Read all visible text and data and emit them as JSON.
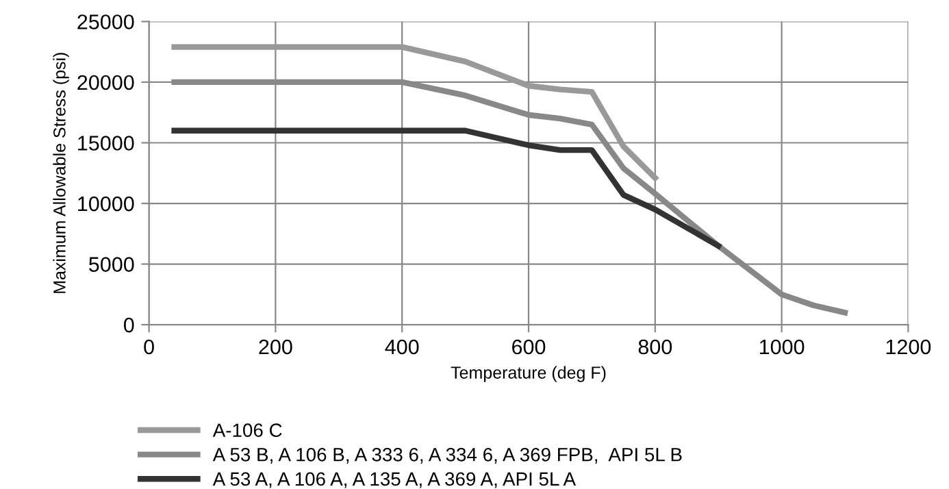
{
  "chart_data": {
    "type": "line",
    "xlabel": "Temperature (deg F)",
    "ylabel": "Maximum Allowable Stress (psi)",
    "xlim": [
      0,
      1200
    ],
    "xticks": [
      0,
      200,
      400,
      600,
      800,
      1000,
      1200
    ],
    "ylim": [
      0,
      25000
    ],
    "yticks": [
      0,
      5000,
      10000,
      15000,
      20000,
      25000
    ],
    "grid": true,
    "legend": "bottom",
    "line_style": "solid",
    "marker": "none",
    "series": [
      {
        "name": "A-106 C",
        "color": "#999999",
        "x": [
          40,
          400,
          500,
          600,
          650,
          700,
          750,
          800
        ],
        "values": [
          22900,
          22900,
          21700,
          19700,
          19400,
          19200,
          14700,
          12100
        ]
      },
      {
        "name": "A 53 B, A 106 B, A 333 6, A 334 6, A 369 FPB,  API 5L B",
        "color": "#888888",
        "x": [
          40,
          400,
          500,
          600,
          650,
          700,
          750,
          800,
          900,
          1000,
          1050,
          1100
        ],
        "values": [
          20000,
          20000,
          18900,
          17300,
          17000,
          16500,
          12900,
          10800,
          6500,
          2500,
          1600,
          1000
        ]
      },
      {
        "name": "A 53 A, A 106 A, A 135 A, A 369 A, API 5L A",
        "color": "#333333",
        "x": [
          40,
          400,
          500,
          600,
          650,
          700,
          750,
          800,
          900
        ],
        "values": [
          16000,
          16000,
          16000,
          14800,
          14400,
          14400,
          10700,
          9500,
          6500
        ]
      }
    ]
  }
}
